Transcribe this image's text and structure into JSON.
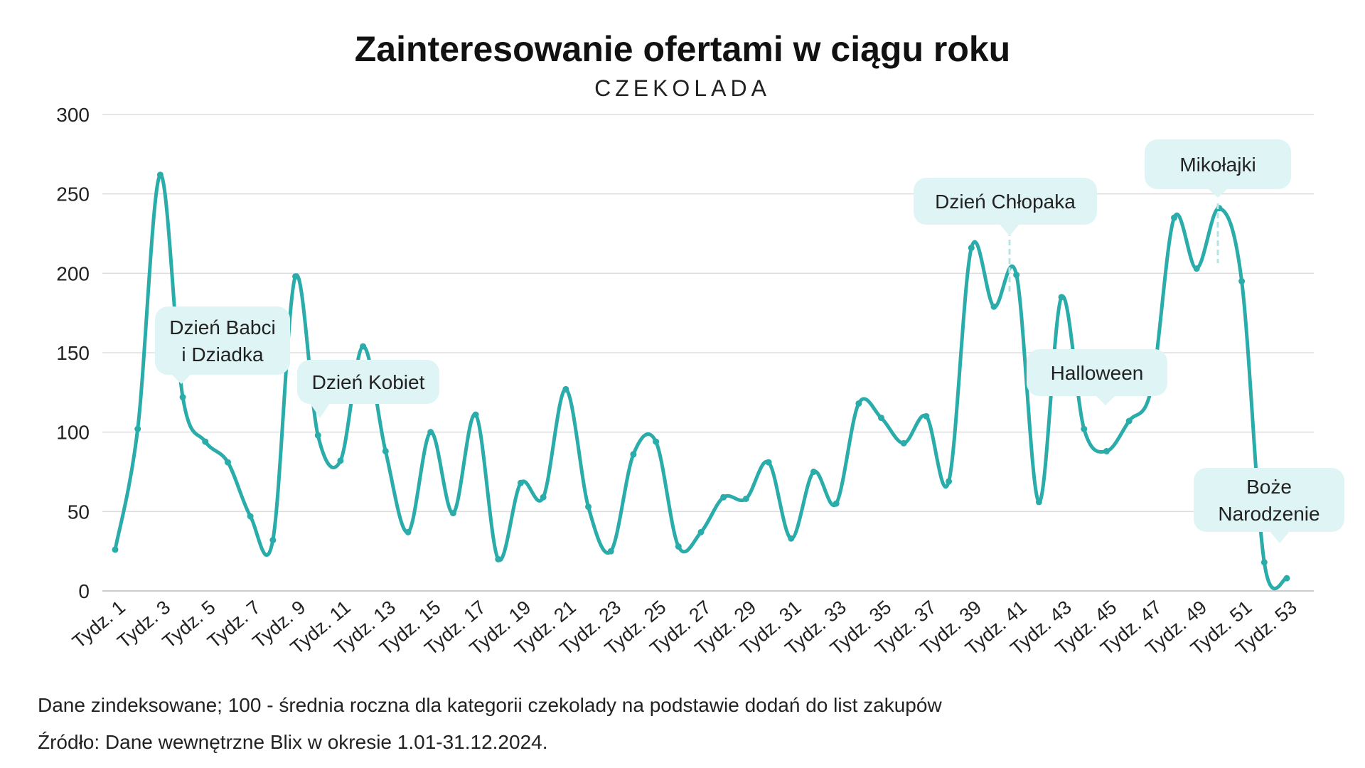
{
  "chart_data": {
    "type": "line",
    "title": "Zainteresowanie ofertami w ciągu roku",
    "subtitle": "CZEKOLADA",
    "x": [
      "Tydz. 1",
      "Tydz. 2",
      "Tydz. 3",
      "Tydz. 4",
      "Tydz. 5",
      "Tydz. 6",
      "Tydz. 7",
      "Tydz. 8",
      "Tydz. 9",
      "Tydz. 10",
      "Tydz. 11",
      "Tydz. 12",
      "Tydz. 13",
      "Tydz. 14",
      "Tydz. 15",
      "Tydz. 16",
      "Tydz. 17",
      "Tydz. 18",
      "Tydz. 19",
      "Tydz. 20",
      "Tydz. 21",
      "Tydz. 22",
      "Tydz. 23",
      "Tydz. 24",
      "Tydz. 25",
      "Tydz. 26",
      "Tydz. 27",
      "Tydz. 28",
      "Tydz. 29",
      "Tydz. 30",
      "Tydz. 31",
      "Tydz. 32",
      "Tydz. 33",
      "Tydz. 34",
      "Tydz. 35",
      "Tydz. 36",
      "Tydz. 37",
      "Tydz. 38",
      "Tydz. 39",
      "Tydz. 40",
      "Tydz. 41",
      "Tydz. 42",
      "Tydz. 43",
      "Tydz. 44",
      "Tydz. 45",
      "Tydz. 46",
      "Tydz. 47",
      "Tydz. 48",
      "Tydz. 49",
      "Tydz. 50",
      "Tydz. 51",
      "Tydz. 52",
      "Tydz. 53"
    ],
    "x_tick_labels": [
      "Tydz. 1",
      "Tydz. 3",
      "Tydz. 5",
      "Tydz. 7",
      "Tydz. 9",
      "Tydz. 11",
      "Tydz. 13",
      "Tydz. 15",
      "Tydz. 17",
      "Tydz. 19",
      "Tydz. 21",
      "Tydz. 23",
      "Tydz. 25",
      "Tydz. 27",
      "Tydz. 29",
      "Tydz. 31",
      "Tydz. 33",
      "Tydz. 35",
      "Tydz. 37",
      "Tydz. 39",
      "Tydz. 41",
      "Tydz. 43",
      "Tydz. 45",
      "Tydz. 47",
      "Tydz. 49",
      "Tydz. 51",
      "Tydz. 53"
    ],
    "series": [
      {
        "values": [
          26,
          102,
          262,
          122,
          94,
          81,
          47,
          32,
          198,
          98,
          82,
          154,
          88,
          37,
          100,
          49,
          111,
          20,
          68,
          59,
          127,
          53,
          25,
          86,
          94,
          28,
          37,
          59,
          58,
          81,
          33,
          75,
          55,
          118,
          109,
          93,
          110,
          69,
          216,
          179,
          199,
          56,
          185,
          102,
          88,
          107,
          128,
          235,
          203,
          241,
          195,
          18,
          8
        ]
      }
    ],
    "ylim": [
      0,
      300
    ],
    "y_ticks": [
      0,
      50,
      100,
      150,
      200,
      250,
      300
    ],
    "grid": true,
    "line_color": "#2aacaa",
    "grid_color": "#dddddd",
    "callout_color": "#dff4f4",
    "annotations": [
      {
        "text": [
          "Dzień Babci",
          "i Dziadka"
        ],
        "week": 4
      },
      {
        "text": [
          "Dzień Kobiet"
        ],
        "week": 10
      },
      {
        "text": [
          "Dzień Chłopaka"
        ],
        "week": 40
      },
      {
        "text": [
          "Halloween"
        ],
        "week": 44
      },
      {
        "text": [
          "Mikołajki"
        ],
        "week": 49
      },
      {
        "text": [
          "Boże",
          "Narodzenie"
        ],
        "week": 52
      }
    ]
  },
  "notes": {
    "index": "Dane zindeksowane; 100 - średnia roczna dla kategorii czekolady na podstawie dodań do list zakupów",
    "source": "Źródło: Dane wewnętrzne Blix w okresie 1.01-31.12.2024."
  }
}
